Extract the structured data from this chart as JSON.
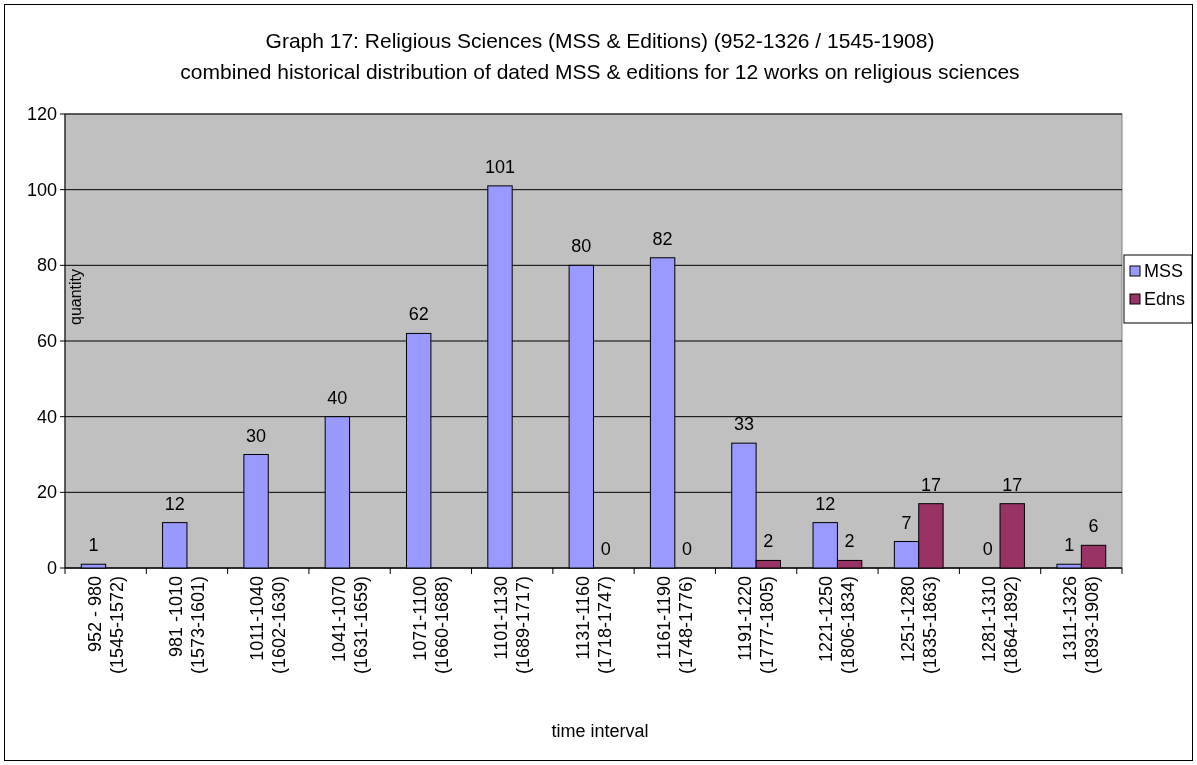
{
  "chart_data": {
    "type": "bar",
    "title": "Graph 17: Religious Sciences (MSS & Editions) (952-1326 / 1545-1908)",
    "subtitle": "combined historical distribution of dated MSS & editions for 12 works on religious sciences",
    "xlabel": "time interval",
    "ylabel": "quantity",
    "categories": [
      "952 - 980\n(1545-1572)",
      "981 -1010\n(1573-1601)",
      "1011-1040\n(1602-1630)",
      "1041-1070\n(1631-1659)",
      "1071-1100\n(1660-1688)",
      "1101-1130\n(1689-1717)",
      "1131-1160\n(1718-1747)",
      "1161-1190\n(1748-1776)",
      "1191-1220\n(1777-1805)",
      "1221-1250\n(1806-1834)",
      "1251-1280\n(1835-1863)",
      "1281-1310\n(1864-1892)",
      "1311-1326\n(1893-1908)"
    ],
    "series": [
      {
        "name": "MSS",
        "color": "#9999ff",
        "values": [
          1,
          12,
          30,
          40,
          62,
          101,
          80,
          82,
          33,
          12,
          7,
          0,
          1
        ]
      },
      {
        "name": "Edns",
        "color": "#993366",
        "values": [
          null,
          null,
          null,
          null,
          null,
          null,
          0,
          0,
          2,
          2,
          17,
          17,
          6
        ]
      }
    ],
    "ylim": [
      0,
      120
    ],
    "yticks": [
      0,
      20,
      40,
      60,
      80,
      100,
      120
    ],
    "grid": "y",
    "legend": "right",
    "data_labels": true
  }
}
